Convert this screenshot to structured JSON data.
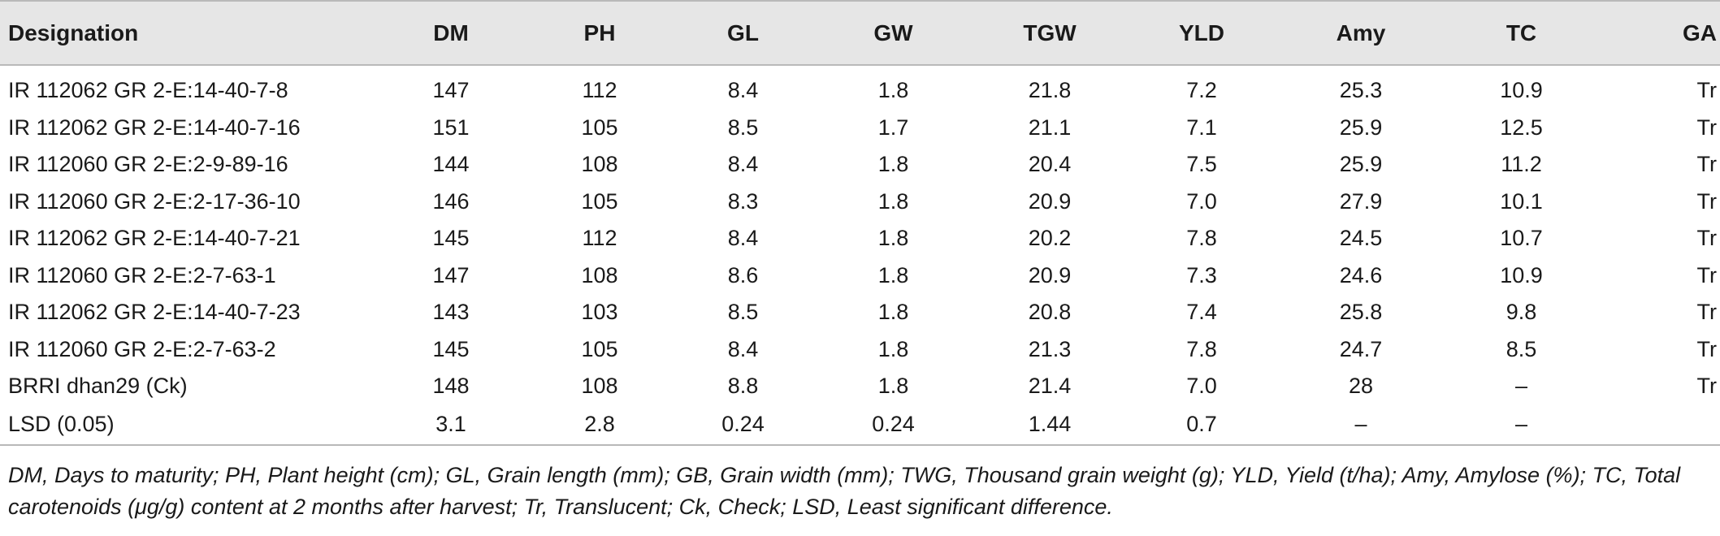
{
  "table": {
    "headers": [
      "Designation",
      "DM",
      "PH",
      "GL",
      "GW",
      "TGW",
      "YLD",
      "Amy",
      "TC",
      "GA"
    ],
    "rows": [
      [
        "IR 112062 GR 2-E:14-40-7-8",
        "147",
        "112",
        "8.4",
        "1.8",
        "21.8",
        "7.2",
        "25.3",
        "10.9",
        "Tr"
      ],
      [
        "IR 112062 GR 2-E:14-40-7-16",
        "151",
        "105",
        "8.5",
        "1.7",
        "21.1",
        "7.1",
        "25.9",
        "12.5",
        "Tr"
      ],
      [
        "IR 112060 GR 2-E:2-9-89-16",
        "144",
        "108",
        "8.4",
        "1.8",
        "20.4",
        "7.5",
        "25.9",
        "11.2",
        "Tr"
      ],
      [
        "IR 112060 GR 2-E:2-17-36-10",
        "146",
        "105",
        "8.3",
        "1.8",
        "20.9",
        "7.0",
        "27.9",
        "10.1",
        "Tr"
      ],
      [
        "IR 112062 GR 2-E:14-40-7-21",
        "145",
        "112",
        "8.4",
        "1.8",
        "20.2",
        "7.8",
        "24.5",
        "10.7",
        "Tr"
      ],
      [
        "IR 112060 GR 2-E:2-7-63-1",
        "147",
        "108",
        "8.6",
        "1.8",
        "20.9",
        "7.3",
        "24.6",
        "10.9",
        "Tr"
      ],
      [
        "IR 112062 GR 2-E:14-40-7-23",
        "143",
        "103",
        "8.5",
        "1.8",
        "20.8",
        "7.4",
        "25.8",
        "9.8",
        "Tr"
      ],
      [
        "IR 112060 GR 2-E:2-7-63-2",
        "145",
        "105",
        "8.4",
        "1.8",
        "21.3",
        "7.8",
        "24.7",
        "8.5",
        "Tr"
      ],
      [
        "BRRI dhan29 (Ck)",
        "148",
        "108",
        "8.8",
        "1.8",
        "21.4",
        "7.0",
        "28",
        "–",
        "Tr"
      ],
      [
        "LSD (0.05)",
        "3.1",
        "2.8",
        "0.24",
        "0.24",
        "1.44",
        "0.7",
        "–",
        "–",
        ""
      ]
    ]
  },
  "footnote": "DM, Days to maturity; PH, Plant height (cm); GL, Grain length (mm); GB, Grain width (mm); TWG, Thousand grain weight (g); YLD, Yield (t/ha); Amy, Amylose (%); TC, Total carotenoids (μg/g) content at 2 months after harvest; Tr, Translucent; Ck, Check; LSD, Least significant difference.",
  "colors": {
    "header_bg": "#e6e6e6",
    "rule": "#b9b9b9",
    "text": "#1a1a1a"
  }
}
